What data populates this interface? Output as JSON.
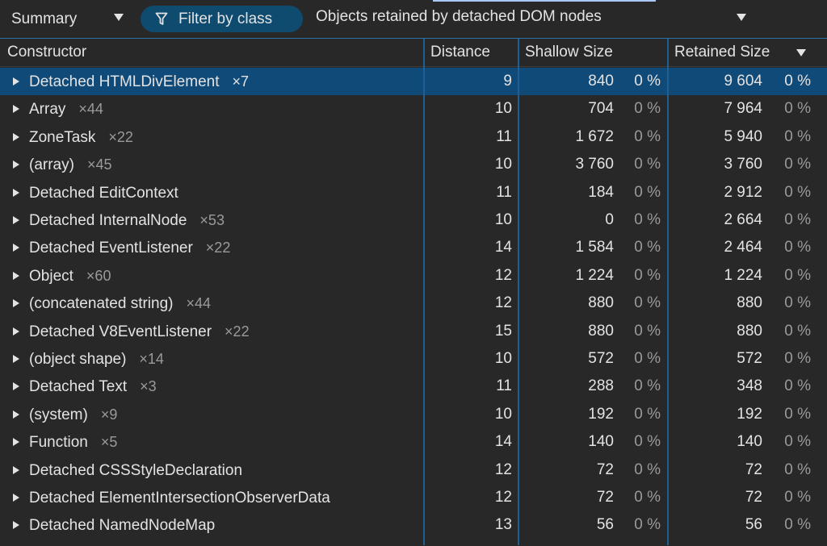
{
  "toolbar": {
    "view_mode": "Summary",
    "filter_label": "Filter by class",
    "objects_filter": "Objects retained by detached DOM nodes"
  },
  "columns": {
    "constructor": "Constructor",
    "distance": "Distance",
    "shallow_size": "Shallow Size",
    "retained_size": "Retained Size",
    "sort": "descending"
  },
  "rows": [
    {
      "name": "Detached HTMLDivElement",
      "count": "×7",
      "distance": "9",
      "shallow": "840",
      "shallow_pct": "0 %",
      "retained": "9 604",
      "retained_pct": "0 %",
      "selected": true
    },
    {
      "name": "Array",
      "count": "×44",
      "distance": "10",
      "shallow": "704",
      "shallow_pct": "0 %",
      "retained": "7 964",
      "retained_pct": "0 %"
    },
    {
      "name": "ZoneTask",
      "count": "×22",
      "distance": "11",
      "shallow": "1 672",
      "shallow_pct": "0 %",
      "retained": "5 940",
      "retained_pct": "0 %"
    },
    {
      "name": "(array)",
      "count": "×45",
      "distance": "10",
      "shallow": "3 760",
      "shallow_pct": "0 %",
      "retained": "3 760",
      "retained_pct": "0 %"
    },
    {
      "name": "Detached EditContext",
      "count": "",
      "distance": "11",
      "shallow": "184",
      "shallow_pct": "0 %",
      "retained": "2 912",
      "retained_pct": "0 %"
    },
    {
      "name": "Detached InternalNode",
      "count": "×53",
      "distance": "10",
      "shallow": "0",
      "shallow_pct": "0 %",
      "retained": "2 664",
      "retained_pct": "0 %"
    },
    {
      "name": "Detached EventListener",
      "count": "×22",
      "distance": "14",
      "shallow": "1 584",
      "shallow_pct": "0 %",
      "retained": "2 464",
      "retained_pct": "0 %"
    },
    {
      "name": "Object",
      "count": "×60",
      "distance": "12",
      "shallow": "1 224",
      "shallow_pct": "0 %",
      "retained": "1 224",
      "retained_pct": "0 %"
    },
    {
      "name": "(concatenated string)",
      "count": "×44",
      "distance": "12",
      "shallow": "880",
      "shallow_pct": "0 %",
      "retained": "880",
      "retained_pct": "0 %"
    },
    {
      "name": "Detached V8EventListener",
      "count": "×22",
      "distance": "15",
      "shallow": "880",
      "shallow_pct": "0 %",
      "retained": "880",
      "retained_pct": "0 %"
    },
    {
      "name": "(object shape)",
      "count": "×14",
      "distance": "10",
      "shallow": "572",
      "shallow_pct": "0 %",
      "retained": "572",
      "retained_pct": "0 %"
    },
    {
      "name": "Detached Text",
      "count": "×3",
      "distance": "11",
      "shallow": "288",
      "shallow_pct": "0 %",
      "retained": "348",
      "retained_pct": "0 %"
    },
    {
      "name": "(system)",
      "count": "×9",
      "distance": "10",
      "shallow": "192",
      "shallow_pct": "0 %",
      "retained": "192",
      "retained_pct": "0 %"
    },
    {
      "name": "Function",
      "count": "×5",
      "distance": "14",
      "shallow": "140",
      "shallow_pct": "0 %",
      "retained": "140",
      "retained_pct": "0 %"
    },
    {
      "name": "Detached CSSStyleDeclaration",
      "count": "",
      "distance": "12",
      "shallow": "72",
      "shallow_pct": "0 %",
      "retained": "72",
      "retained_pct": "0 %"
    },
    {
      "name": "Detached ElementIntersectionObserverData",
      "count": "",
      "distance": "12",
      "shallow": "72",
      "shallow_pct": "0 %",
      "retained": "72",
      "retained_pct": "0 %"
    },
    {
      "name": "Detached NamedNodeMap",
      "count": "",
      "distance": "13",
      "shallow": "56",
      "shallow_pct": "0 %",
      "retained": "56",
      "retained_pct": "0 %"
    }
  ],
  "colors": {
    "background": "#282828",
    "selected_row": "#104a78",
    "filter_pill": "#0f4a6f",
    "column_divider": "#1f5f95",
    "accent": "#a8c7fa"
  }
}
